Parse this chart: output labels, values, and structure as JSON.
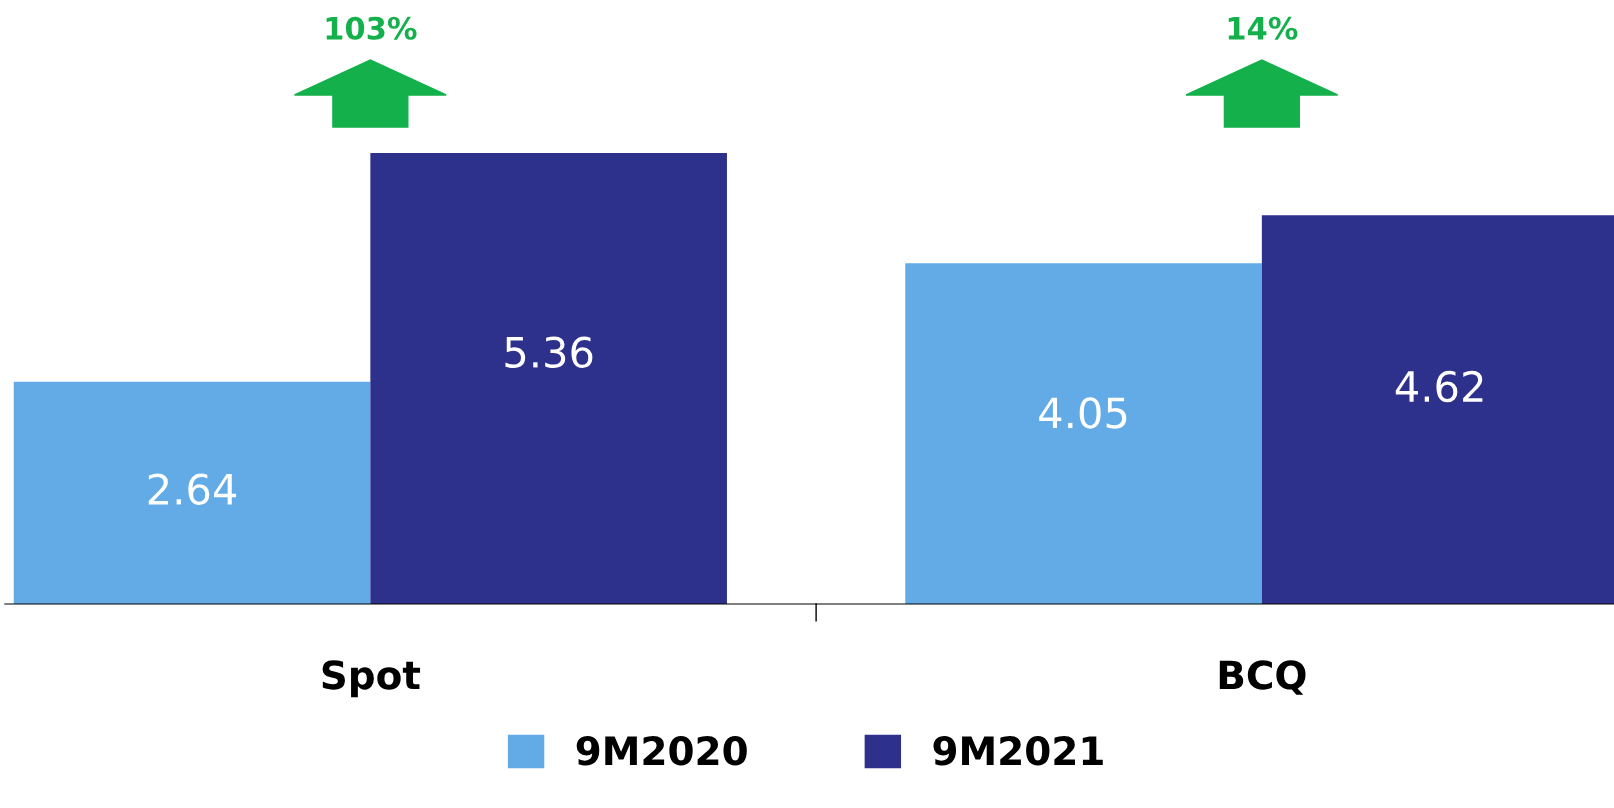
{
  "chart_data": {
    "type": "bar",
    "categories": [
      "Spot",
      "BCQ"
    ],
    "series": [
      {
        "name": "9M2020",
        "color": "#62abe6",
        "values": [
          2.64,
          4.05
        ]
      },
      {
        "name": "9M2021",
        "color": "#2e318b",
        "values": [
          5.36,
          4.62
        ]
      }
    ],
    "relative": false,
    "data_labels": true,
    "legend": "bottom",
    "grid": false,
    "annotations": [
      "103%",
      "14%"
    ]
  }
}
